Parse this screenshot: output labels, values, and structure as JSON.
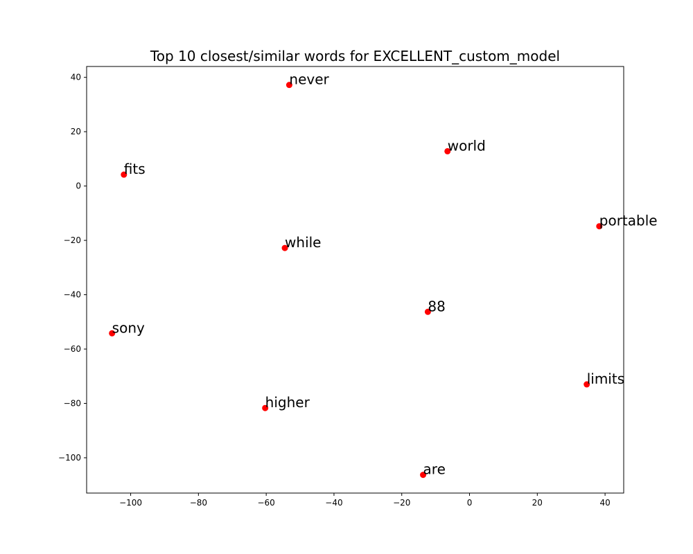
{
  "chart_data": {
    "type": "scatter",
    "title": "Top 10 closest/similar words for EXCELLENT_custom_model",
    "xlabel": "",
    "ylabel": "",
    "xlim": [
      -113,
      45.5
    ],
    "ylim": [
      -113,
      44
    ],
    "xticks": [
      -100,
      -80,
      -60,
      -40,
      -20,
      0,
      20,
      40
    ],
    "yticks": [
      -100,
      -80,
      -60,
      -40,
      -20,
      0,
      20,
      40
    ],
    "xtick_labels": [
      "−100",
      "−80",
      "−60",
      "−40",
      "−20",
      "0",
      "20",
      "40"
    ],
    "ytick_labels": [
      "−100",
      "−80",
      "−60",
      "−40",
      "−20",
      "0",
      "20",
      "40"
    ],
    "grid": false,
    "marker_color": "#ff0000",
    "points": [
      {
        "label": "never",
        "x": -53.2,
        "y": 37.2
      },
      {
        "label": "world",
        "x": -6.5,
        "y": 12.8
      },
      {
        "label": "fits",
        "x": -102.0,
        "y": 4.2
      },
      {
        "label": "portable",
        "x": 38.3,
        "y": -14.8
      },
      {
        "label": "while",
        "x": -54.5,
        "y": -22.8
      },
      {
        "label": "88",
        "x": -12.3,
        "y": -46.3
      },
      {
        "label": "sony",
        "x": -105.5,
        "y": -54.2
      },
      {
        "label": "limits",
        "x": 34.6,
        "y": -73.0
      },
      {
        "label": "higher",
        "x": -60.3,
        "y": -81.7
      },
      {
        "label": "are",
        "x": -13.7,
        "y": -106.3
      }
    ]
  }
}
